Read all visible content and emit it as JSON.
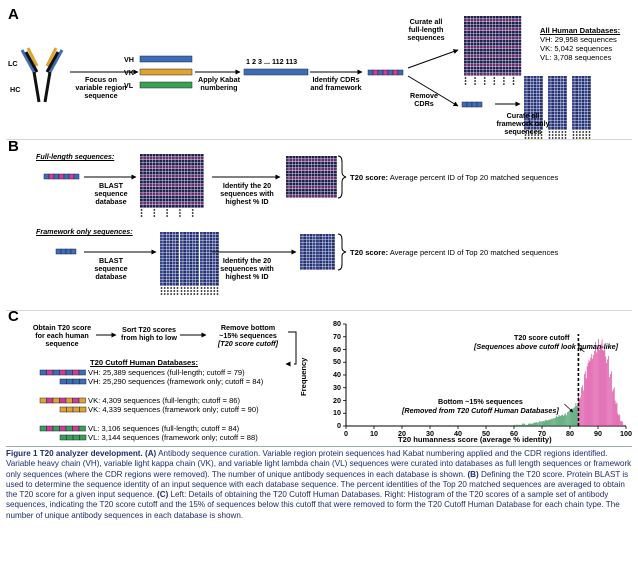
{
  "panel_a": {
    "label": "A",
    "lc": "LC",
    "hc": "HC",
    "vh": "VH",
    "vk": "VK",
    "vl": "VL",
    "focus": [
      "Focus on",
      "variable region",
      "sequence"
    ],
    "kabat": [
      "Apply Kabat",
      "numbering"
    ],
    "numbering": "1 2 3 ... 112 113",
    "identify": [
      "Identify CDRs",
      "and framework"
    ],
    "curate_full": [
      "Curate all",
      "full-length",
      "sequences"
    ],
    "remove": [
      "Remove",
      "CDRs"
    ],
    "curate_fw": [
      "Curate all",
      "framework only",
      "sequences"
    ],
    "db_title": "All Human Databases:",
    "db_lines": [
      "VH: 29,958 sequences",
      "VK: 5,042 sequences",
      "VL: 3,708 sequences"
    ]
  },
  "panel_b": {
    "label": "B",
    "full_title": "Full-length sequences:",
    "fw_title": "Framework only sequences:",
    "blast": [
      "BLAST",
      "sequence",
      "database"
    ],
    "identify20": [
      "Identify the 20",
      "sequences with",
      "highest % ID"
    ],
    "t20_bold": "T20 score:",
    "t20_text": "Average percent ID of Top 20 matched sequences"
  },
  "panel_c": {
    "label": "C",
    "step1": [
      "Obtain T20 score",
      "for each human",
      "sequence"
    ],
    "step2": [
      "Sort T20 scores",
      "from high to low"
    ],
    "step3": [
      "Remove bottom",
      "~15% sequences"
    ],
    "step3_it": "[T20 score cutoff]",
    "cutoff_title": "T20 Cutoff Human Databases:",
    "cutoff_lines": [
      "VH: 25,389 sequences (full-length; cutoff = 79)",
      "VH: 25,290 sequences (framework only; cutoff = 84)",
      "VK: 4,309 sequences (full-length; cutoff = 86)",
      "VK: 4,339 sequences (framework only; cutoff = 90)",
      "VL: 3,106 sequences (full-length; cutoff = 84)",
      "VL: 3,144 sequences (framework only; cutoff = 88)"
    ]
  },
  "colors": {
    "vh": "#3d6db3",
    "vk": "#e2a32a",
    "vl": "#3aa150",
    "cdr": "#d13d8f",
    "dark": "#1b2250",
    "pink": "#d93a9a",
    "green": "#2e8f55"
  },
  "chart_data": {
    "type": "bar",
    "xlabel": "T20 humanness score (average % identity)",
    "ylabel": "Frequency",
    "xlim": [
      0,
      100
    ],
    "ylim": [
      0,
      80
    ],
    "xticks": [
      0,
      10,
      20,
      30,
      40,
      50,
      60,
      70,
      80,
      90,
      100
    ],
    "yticks": [
      0,
      10,
      20,
      30,
      40,
      50,
      60,
      70,
      80
    ],
    "cutoff": 83,
    "annot_cutoff": "T20 score cutoff",
    "annot_cutoff_it": "[Sequences above cutoff look human-like]",
    "annot_bottom": "Bottom ~15% sequences",
    "annot_bottom_it": "[Removed from T20 Cutoff Human Databases]",
    "bins_x": [
      60,
      61,
      62,
      63,
      64,
      65,
      66,
      67,
      68,
      69,
      70,
      71,
      72,
      73,
      74,
      75,
      76,
      77,
      78,
      79,
      80,
      81,
      82,
      83,
      84,
      85,
      86,
      87,
      88,
      89,
      90,
      91,
      92,
      93,
      94,
      95,
      96,
      97,
      98,
      99
    ],
    "bins_y": [
      1,
      1,
      1,
      2,
      1,
      2,
      2,
      3,
      3,
      4,
      4,
      5,
      5,
      6,
      7,
      8,
      9,
      9,
      10,
      12,
      14,
      16,
      18,
      25,
      32,
      44,
      52,
      58,
      62,
      66,
      70,
      68,
      64,
      55,
      44,
      32,
      20,
      10,
      4,
      1
    ]
  },
  "caption": {
    "fig": "Figure 1 T20 analyzer development.",
    "a_label": "(A)",
    "a_text": "Antibody sequence curation. Variable region protein sequences had Kabat numbering applied and the CDR regions identified. Variable heavy chain (VH), variable light kappa chain (VK), and variable light lambda chain (VL) sequences were curated into databases as full length sequences or framework only sequences (where the CDR regions were removed). The number of unique antibody sequences in each database is shown.",
    "b_label": "(B)",
    "b_text": "Defining the T20 score. Protein BLAST is used to determine the sequence identity of an input sequence with each database sequence. The percent identities of the Top 20 matched sequences are averaged to obtain the T20 score for a given input sequence.",
    "c_label": "(C)",
    "c_text": "Left: Details of obtaining the T20 Cutoff Human Databases. Right: Histogram of the T20 scores of a sample set of antibody sequences, indicating the T20 score cutoff and the 15% of sequences below this cutoff that were removed to form the T20 Cutoff Human Database for each chain type. The number of unique antibody sequences in each database is shown."
  }
}
